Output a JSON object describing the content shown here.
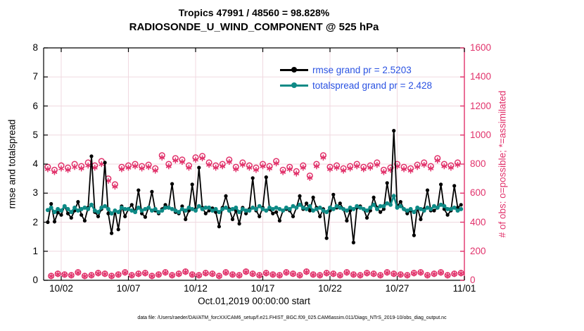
{
  "title": {
    "line1": "Tropics 47991 / 48560 = 98.828%",
    "line2": "RADIOSONDE_U_WIND_COMPONENT @ 525 hPa"
  },
  "legend": {
    "items": [
      {
        "label": "rmse grand pr = 2.5203",
        "series": "rmse"
      },
      {
        "label": "totalspread grand pr = 2.428",
        "series": "totalspread"
      }
    ]
  },
  "axes": {
    "ylabel_left": "rmse and totalspread",
    "ylabel_right": "# of obs: o=possible; *=assimilated",
    "xlabel": "Oct.01,2019 00:00:00 start",
    "left_ticks": [
      "0",
      "1",
      "2",
      "3",
      "4",
      "5",
      "6",
      "7",
      "8"
    ],
    "right_ticks": [
      "0",
      "200",
      "400",
      "600",
      "800",
      "1000",
      "1200",
      "1400",
      "1600"
    ],
    "x_ticks": [
      "10/02",
      "10/07",
      "10/12",
      "10/17",
      "10/22",
      "10/27",
      "11/01"
    ],
    "ylim_left": [
      0,
      8
    ],
    "ylim_right": [
      0,
      1600
    ]
  },
  "footer": "data file: /Users/raeder/DAI/ATM_forcXX/CAM6_setup/f.e21.FHIST_BGC.f09_025.CAM6assim.011/Diags_NTrS_2019-10/obs_diag_output.nc",
  "colors": {
    "rmse": "#000000",
    "totalspread": "#0e8a86",
    "obs_counts": "#e1326b",
    "legend_text": "#2a52e2",
    "grid": "#f0d9e0"
  },
  "chart_data": {
    "type": "line",
    "title": "Tropics 47991 / 48560 = 98.828% — RADIOSONDE_U_WIND_COMPONENT @ 525 hPa",
    "xlabel": "Oct.01,2019 00:00:00 start",
    "ylabel_left": "rmse and totalspread",
    "ylabel_right": "# of obs: o=possible; *=assimilated",
    "ylim_left": [
      0,
      8
    ],
    "ylim_right": [
      0,
      1600
    ],
    "x_bins": {
      "start": "2019-10-01 00:00",
      "step_hours": 6,
      "count": 124
    },
    "x_tick_days": [
      2,
      7,
      12,
      17,
      22,
      27,
      32
    ],
    "grand_stats": {
      "rmse_grand_pr": 2.5203,
      "totalspread_grand_pr": 2.428,
      "n_possible_total": 48560,
      "n_assimilated_total": 47991,
      "percent_assimilated": 98.828
    },
    "series": [
      {
        "name": "rmse",
        "axis": "left",
        "values": [
          2.0,
          2.63,
          2.02,
          2.33,
          2.25,
          2.55,
          2.3,
          2.15,
          2.4,
          2.7,
          2.25,
          2.05,
          2.5,
          4.27,
          2.35,
          2.2,
          2.45,
          4.05,
          2.3,
          1.62,
          2.4,
          1.75,
          2.55,
          2.2,
          2.45,
          2.6,
          2.35,
          3.1,
          2.3,
          2.18,
          2.5,
          3.05,
          2.4,
          2.3,
          2.45,
          2.6,
          2.5,
          3.32,
          2.35,
          2.3,
          2.55,
          2.1,
          2.4,
          3.3,
          2.45,
          3.88,
          2.5,
          2.3,
          2.4,
          2.48,
          2.35,
          1.85,
          2.5,
          2.9,
          2.45,
          2.1,
          2.4,
          1.95,
          2.5,
          2.3,
          2.45,
          3.52,
          2.4,
          2.2,
          2.5,
          3.55,
          2.45,
          2.3,
          2.35,
          2.05,
          2.4,
          2.45,
          2.4,
          2.2,
          2.5,
          2.9,
          2.45,
          2.65,
          2.4,
          2.85,
          2.5,
          2.2,
          2.45,
          1.45,
          2.4,
          2.95,
          2.5,
          2.65,
          2.45,
          2.05,
          2.4,
          1.3,
          2.5,
          2.55,
          2.45,
          2.15,
          2.4,
          2.85,
          2.5,
          2.35,
          2.45,
          3.35,
          2.6,
          5.15,
          2.55,
          2.7,
          2.45,
          2.3,
          2.4,
          1.55,
          2.5,
          2.1,
          2.45,
          3.1,
          2.4,
          2.4,
          2.5,
          3.3,
          2.45,
          2.25,
          2.4,
          3.25,
          2.5,
          2.6
        ]
      },
      {
        "name": "totalspread",
        "axis": "left",
        "values": [
          2.42,
          2.5,
          2.35,
          2.45,
          2.4,
          2.55,
          2.45,
          2.35,
          2.5,
          2.4,
          2.45,
          2.5,
          2.45,
          2.6,
          2.4,
          2.35,
          2.5,
          2.55,
          2.45,
          2.3,
          2.4,
          2.35,
          2.5,
          2.45,
          2.45,
          2.4,
          2.35,
          2.5,
          2.4,
          2.45,
          2.5,
          2.4,
          2.45,
          2.35,
          2.4,
          2.5,
          2.5,
          2.45,
          2.4,
          2.35,
          2.45,
          2.4,
          2.5,
          2.45,
          2.4,
          2.55,
          2.45,
          2.5,
          2.5,
          2.4,
          2.45,
          2.35,
          2.45,
          2.5,
          2.4,
          2.45,
          2.5,
          2.35,
          2.45,
          2.4,
          2.4,
          2.5,
          2.45,
          2.55,
          2.45,
          2.4,
          2.5,
          2.45,
          2.5,
          2.45,
          2.4,
          2.5,
          2.45,
          2.55,
          2.5,
          2.6,
          2.5,
          2.45,
          2.55,
          2.4,
          2.45,
          2.5,
          2.4,
          2.35,
          2.5,
          2.45,
          2.55,
          2.5,
          2.45,
          2.4,
          2.5,
          2.45,
          2.55,
          2.5,
          2.45,
          2.4,
          2.5,
          2.6,
          2.45,
          2.55,
          2.55,
          2.65,
          2.6,
          2.9,
          2.5,
          2.55,
          2.45,
          2.4,
          2.45,
          2.35,
          2.5,
          2.45,
          2.4,
          2.5,
          2.45,
          2.55,
          2.5,
          2.6,
          2.55,
          2.45,
          2.45,
          2.5,
          2.4,
          2.45
        ]
      },
      {
        "name": "n_possible",
        "axis": "right",
        "marker": "o",
        "values": [
          780,
          30,
          760,
          45,
          790,
          40,
          775,
          35,
          800,
          55,
          785,
          30,
          810,
          35,
          790,
          50,
          820,
          45,
          700,
          30,
          660,
          40,
          780,
          55,
          790,
          35,
          800,
          45,
          785,
          50,
          795,
          30,
          770,
          40,
          860,
          55,
          800,
          35,
          840,
          45,
          830,
          60,
          790,
          40,
          845,
          35,
          855,
          50,
          810,
          45,
          790,
          30,
          800,
          55,
          830,
          40,
          780,
          35,
          810,
          60,
          790,
          45,
          775,
          35,
          800,
          50,
          785,
          40,
          820,
          35,
          760,
          55,
          780,
          45,
          750,
          35,
          790,
          60,
          720,
          40,
          800,
          35,
          860,
          50,
          780,
          45,
          790,
          35,
          770,
          55,
          785,
          40,
          800,
          35,
          780,
          50,
          790,
          45,
          810,
          35,
          760,
          55,
          775,
          45,
          800,
          40,
          780,
          35,
          770,
          50,
          795,
          55,
          810,
          35,
          785,
          45,
          840,
          55,
          800,
          35,
          790,
          45,
          810,
          50
        ]
      },
      {
        "name": "n_assimilated",
        "axis": "right",
        "marker": "*",
        "values": [
          765,
          28,
          745,
          42,
          770,
          38,
          760,
          33,
          780,
          52,
          770,
          28,
          790,
          33,
          775,
          47,
          800,
          43,
          685,
          28,
          645,
          38,
          765,
          52,
          775,
          33,
          785,
          42,
          770,
          47,
          780,
          28,
          755,
          38,
          845,
          52,
          785,
          33,
          825,
          42,
          815,
          57,
          775,
          38,
          830,
          33,
          840,
          47,
          795,
          43,
          775,
          28,
          785,
          52,
          815,
          38,
          765,
          33,
          795,
          57,
          775,
          43,
          760,
          33,
          785,
          47,
          770,
          38,
          805,
          33,
          745,
          52,
          765,
          43,
          735,
          33,
          775,
          57,
          705,
          38,
          785,
          33,
          845,
          47,
          765,
          43,
          775,
          33,
          755,
          52,
          770,
          38,
          785,
          33,
          765,
          47,
          775,
          43,
          795,
          33,
          745,
          52,
          760,
          43,
          785,
          38,
          765,
          33,
          755,
          47,
          780,
          52,
          795,
          33,
          770,
          43,
          825,
          52,
          785,
          33,
          775,
          43,
          795,
          47
        ]
      }
    ]
  }
}
